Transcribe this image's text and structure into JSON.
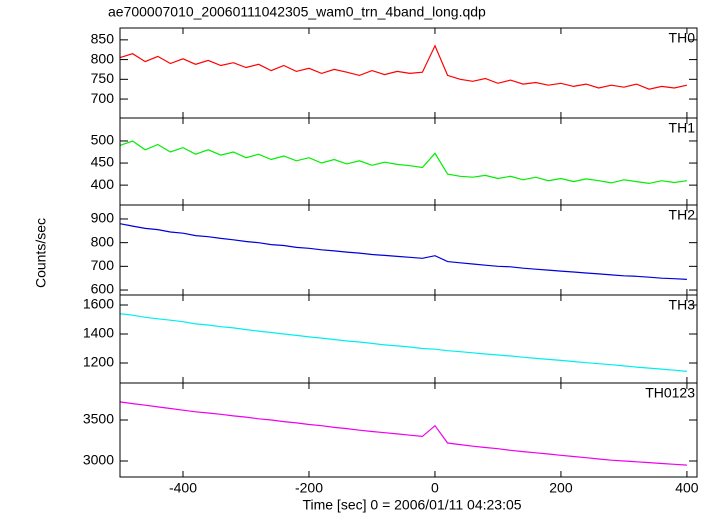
{
  "chart_data": {
    "type": "line",
    "title": "ae700007010_20060111042305_wam0_trn_4band_long.qdp",
    "xlabel": "Time [sec] 0 = 2006/01/11 04:23:05",
    "ylabel": "Counts/sec",
    "xlim": [
      -500,
      416
    ],
    "xticks": [
      -400,
      -200,
      0,
      200,
      400
    ],
    "x": [
      -500,
      -480,
      -460,
      -440,
      -420,
      -400,
      -380,
      -360,
      -340,
      -320,
      -300,
      -280,
      -260,
      -240,
      -220,
      -200,
      -180,
      -160,
      -140,
      -120,
      -100,
      -80,
      -60,
      -40,
      -20,
      0,
      20,
      40,
      60,
      80,
      100,
      120,
      140,
      160,
      180,
      200,
      220,
      240,
      260,
      280,
      300,
      320,
      340,
      360,
      380,
      400
    ],
    "panels": [
      {
        "name": "TH0",
        "color": "#ff0000",
        "ylim": [
          652,
          880
        ],
        "yticks": [
          700,
          750,
          800,
          850
        ],
        "values": [
          805,
          815,
          795,
          808,
          790,
          802,
          788,
          798,
          785,
          792,
          780,
          788,
          772,
          785,
          770,
          778,
          765,
          775,
          768,
          760,
          772,
          762,
          770,
          765,
          768,
          835,
          760,
          750,
          745,
          752,
          740,
          748,
          738,
          742,
          735,
          740,
          732,
          738,
          728,
          735,
          730,
          738,
          725,
          732,
          728,
          735
        ]
      },
      {
        "name": "TH1",
        "color": "#00ee00",
        "ylim": [
          355,
          552
        ],
        "yticks": [
          400,
          450,
          500
        ],
        "values": [
          490,
          500,
          480,
          492,
          475,
          485,
          470,
          480,
          468,
          475,
          462,
          470,
          458,
          466,
          455,
          462,
          450,
          458,
          448,
          455,
          445,
          452,
          447,
          444,
          440,
          472,
          425,
          420,
          418,
          422,
          415,
          420,
          412,
          418,
          410,
          415,
          408,
          414,
          410,
          405,
          412,
          408,
          404,
          410,
          406,
          410
        ]
      },
      {
        "name": "TH2",
        "color": "#0000dd",
        "ylim": [
          579,
          959
        ],
        "yticks": [
          600,
          700,
          800,
          900
        ],
        "values": [
          880,
          870,
          860,
          855,
          845,
          840,
          830,
          825,
          818,
          812,
          805,
          800,
          792,
          788,
          780,
          776,
          770,
          765,
          760,
          756,
          750,
          746,
          742,
          738,
          734,
          745,
          720,
          715,
          710,
          705,
          700,
          698,
          692,
          688,
          684,
          680,
          676,
          672,
          668,
          664,
          660,
          658,
          654,
          650,
          648,
          645
        ]
      },
      {
        "name": "TH3",
        "color": "#00eeee",
        "ylim": [
          1062,
          1669
        ],
        "yticks": [
          1200,
          1400,
          1600
        ],
        "values": [
          1540,
          1530,
          1515,
          1505,
          1495,
          1485,
          1470,
          1462,
          1450,
          1442,
          1430,
          1420,
          1410,
          1400,
          1390,
          1380,
          1372,
          1362,
          1352,
          1345,
          1335,
          1325,
          1318,
          1310,
          1300,
          1295,
          1285,
          1278,
          1270,
          1262,
          1255,
          1248,
          1240,
          1232,
          1225,
          1218,
          1210,
          1202,
          1195,
          1188,
          1180,
          1172,
          1165,
          1158,
          1150,
          1142
        ]
      },
      {
        "name": "TH0123",
        "color": "#ee00ee",
        "ylim": [
          2805,
          3951
        ],
        "yticks": [
          3000,
          3500
        ],
        "values": [
          3720,
          3700,
          3680,
          3660,
          3640,
          3620,
          3600,
          3585,
          3570,
          3550,
          3535,
          3515,
          3500,
          3480,
          3465,
          3445,
          3430,
          3410,
          3395,
          3375,
          3360,
          3345,
          3330,
          3315,
          3300,
          3430,
          3220,
          3200,
          3180,
          3165,
          3150,
          3130,
          3115,
          3100,
          3085,
          3070,
          3055,
          3040,
          3025,
          3010,
          3000,
          2990,
          2980,
          2970,
          2960,
          2950
        ]
      }
    ]
  }
}
